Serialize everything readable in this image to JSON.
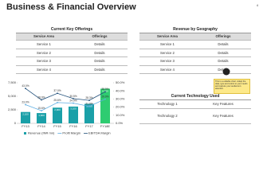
{
  "header": {
    "title": "Business & Financial Overview",
    "page_number": "4"
  },
  "offerings": {
    "title": "Current Key Offerings",
    "columns": [
      "Service Area",
      "Offerings"
    ],
    "rows": [
      [
        "Service 1",
        "Details"
      ],
      [
        "Service 2",
        "Details"
      ],
      [
        "Service 3",
        "Details"
      ],
      [
        "Service 4",
        "Details"
      ]
    ]
  },
  "geography": {
    "title": "Revenue by Geography",
    "columns": [
      "Service Area",
      "Offerings"
    ],
    "rows": [
      [
        "Service 1",
        "Details"
      ],
      [
        "Service 2",
        "Details"
      ],
      [
        "Service 3",
        "Details"
      ],
      [
        "Service 4",
        "Details"
      ]
    ]
  },
  "note": {
    "text": "This is a editable chart. Adapt the data, type and colors to your needs and capture your audience's attention."
  },
  "technology": {
    "title": "Current Technology Used",
    "rows": [
      [
        "Technology 1",
        "Key Features"
      ],
      [
        "Technology 2",
        "Key Features"
      ]
    ]
  },
  "chart_data": {
    "type": "bar",
    "categories": [
      "FY13",
      "FY14",
      "FY15",
      "FY16",
      "FY17",
      "FY18E"
    ],
    "series": [
      {
        "name": "Revenue (INR mn)",
        "colors": [
          "#1aa0a8",
          "#1aa0a8",
          "#1aa0a8",
          "#1aa0a8",
          "#1aa0a8",
          "#2ecc71"
        ],
        "values": [
          2100,
          1900,
          2900,
          3100,
          3600,
          6400
        ],
        "value_labels": [
          "2,100",
          "1,900",
          "2,900",
          "3,100",
          "3,600",
          "6,400"
        ]
      },
      {
        "name": "Profit Margin",
        "type": "line",
        "axis": "y2",
        "color": "#5dade2",
        "values": [
          23.0,
          15.6,
          25.6,
          24.9,
          21.0,
          29.9
        ],
        "value_labels": [
          "23.0%",
          "15.6%",
          "25.6%",
          "24.9%",
          "21.0%",
          "29.9%"
        ]
      },
      {
        "name": "EBITDA Margin",
        "type": "line",
        "axis": "y2",
        "color": "#1f4e79",
        "values": [
          43.0,
          28.9,
          37.0,
          30.5,
          28.3,
          38.9
        ],
        "value_labels": [
          "43.0%",
          "28.9%",
          "37.0%",
          "30.5%",
          "28.3%",
          "38.9%"
        ]
      }
    ],
    "ylim": [
      0,
      7500
    ],
    "yticks": [
      0,
      {
        "value": 2500,
        "label": "2,500"
      },
      {
        "value": 5000,
        "label": "5,000"
      },
      {
        "value": 7500,
        "label": "7,500"
      }
    ],
    "y2lim": [
      0,
      50
    ],
    "y2ticks": [
      {
        "value": 0,
        "label": "0.0%"
      },
      {
        "value": 10,
        "label": "10.0%"
      },
      {
        "value": 20,
        "label": "20.0%"
      },
      {
        "value": 30,
        "label": "30.0%"
      },
      {
        "value": 40,
        "label": "40.0%"
      },
      {
        "value": 50,
        "label": "50.0%"
      }
    ]
  }
}
